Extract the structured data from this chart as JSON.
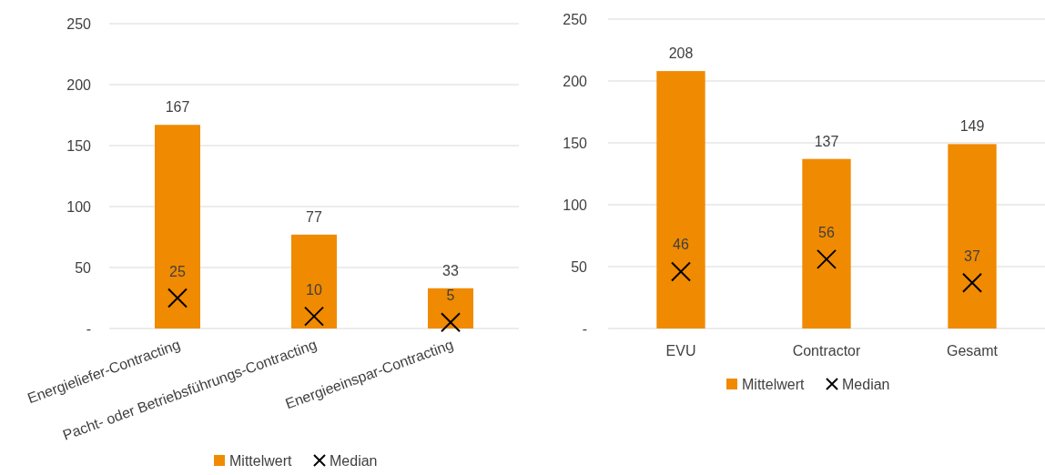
{
  "chart_data": [
    {
      "type": "bar",
      "categories": [
        "Energieliefer-Contracting",
        "Pacht- oder Betriebsführungs-Contracting",
        "Energieeinspar-Contracting"
      ],
      "series": [
        {
          "name": "Mittelwert",
          "color": "#f08a00",
          "values": [
            167,
            77,
            33
          ]
        },
        {
          "name": "Median",
          "type": "scatter",
          "marker": "cross",
          "color": "#000000",
          "values": [
            25,
            10,
            5
          ]
        }
      ],
      "ylim": [
        0,
        250
      ],
      "yticks": [
        {
          "value": 0,
          "label": "-"
        },
        50,
        100,
        150,
        200,
        250
      ],
      "grid": "y",
      "legend": "bottom",
      "data_labels": true
    },
    {
      "type": "bar",
      "categories": [
        "EVU",
        "Contractor",
        "Gesamt"
      ],
      "series": [
        {
          "name": "Mittelwert",
          "color": "#f08a00",
          "values": [
            208,
            137,
            149
          ]
        },
        {
          "name": "Median",
          "type": "scatter",
          "marker": "cross",
          "color": "#000000",
          "values": [
            46,
            56,
            37
          ]
        }
      ],
      "ylim": [
        0,
        250
      ],
      "yticks": [
        {
          "value": 0,
          "label": "-"
        },
        50,
        100,
        150,
        200,
        250
      ],
      "grid": "y",
      "legend": "bottom",
      "data_labels": true
    }
  ]
}
